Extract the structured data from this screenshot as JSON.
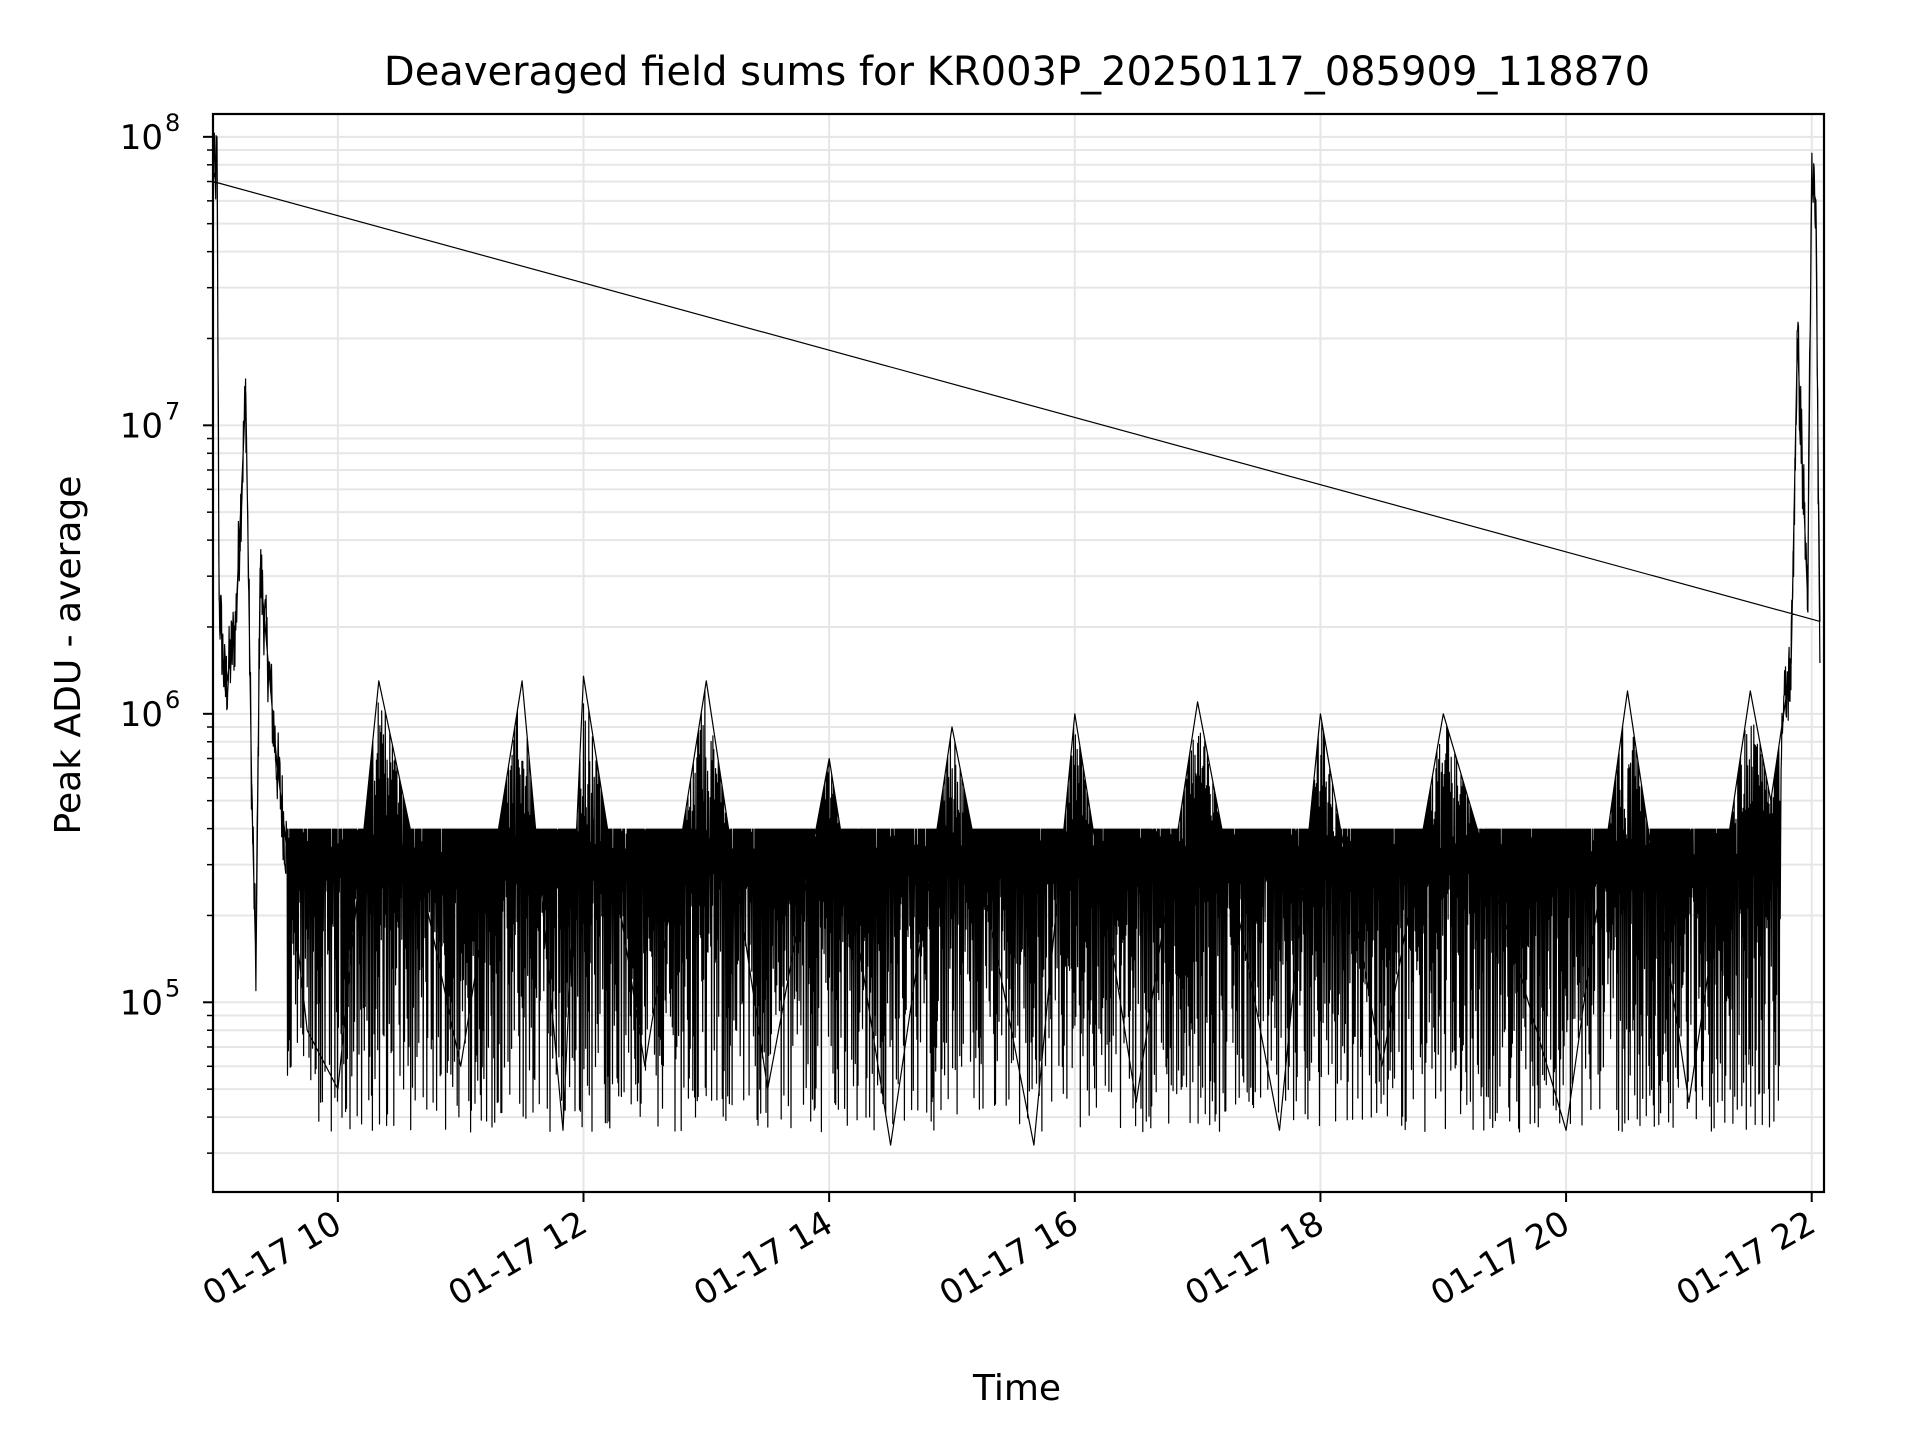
{
  "chart_data": {
    "type": "line",
    "title": "Deaveraged field sums for KR003P_20250117_085909_118870",
    "xlabel": "Time",
    "ylabel": "Peak ADU - average",
    "yscale": "log",
    "ylim": [
      22000,
      120000000
    ],
    "xlim": [
      "2025-01-17 08:59",
      "2025-01-17 22:06"
    ],
    "grid": true,
    "line_color": "#000000",
    "grid_color": "#e6e6e6",
    "x_ticks": [
      {
        "value": "2025-01-17 10:00",
        "label": "01-17 10"
      },
      {
        "value": "2025-01-17 12:00",
        "label": "01-17 12"
      },
      {
        "value": "2025-01-17 14:00",
        "label": "01-17 14"
      },
      {
        "value": "2025-01-17 16:00",
        "label": "01-17 16"
      },
      {
        "value": "2025-01-17 18:00",
        "label": "01-17 18"
      },
      {
        "value": "2025-01-17 20:00",
        "label": "01-17 20"
      },
      {
        "value": "2025-01-17 22:00",
        "label": "01-17 22"
      }
    ],
    "y_ticks": [
      {
        "value": 100000,
        "base": "10",
        "exp": "5"
      },
      {
        "value": 1000000,
        "base": "10",
        "exp": "6"
      },
      {
        "value": 10000000,
        "base": "10",
        "exp": "7"
      },
      {
        "value": 100000000,
        "base": "10",
        "exp": "8"
      }
    ],
    "series": [
      {
        "values": [
          [
            "2025-01-17 08:59",
            70000000
          ],
          [
            "2025-01-17 09:01",
            80000000
          ],
          [
            "2025-01-17 09:02",
            2500000
          ],
          [
            "2025-01-17 09:05",
            1200000
          ],
          [
            "2025-01-17 09:10",
            2000000
          ],
          [
            "2025-01-17 09:15",
            13000000
          ],
          [
            "2025-01-17 09:18",
            500000
          ],
          [
            "2025-01-17 09:20",
            130000
          ],
          [
            "2025-01-17 09:22",
            3200000
          ],
          [
            "2025-01-17 09:30",
            700000
          ],
          [
            "2025-01-17 09:45",
            80000
          ],
          [
            "2025-01-17 10:00",
            50000
          ],
          [
            "2025-01-17 10:20",
            1300000
          ],
          [
            "2025-01-17 11:00",
            60000
          ],
          [
            "2025-01-17 11:30",
            1300000
          ],
          [
            "2025-01-17 11:50",
            36000
          ],
          [
            "2025-01-17 12:00",
            1350000
          ],
          [
            "2025-01-17 12:30",
            60000
          ],
          [
            "2025-01-17 13:00",
            1300000
          ],
          [
            "2025-01-17 13:30",
            50000
          ],
          [
            "2025-01-17 14:00",
            700000
          ],
          [
            "2025-01-17 14:30",
            32000
          ],
          [
            "2025-01-17 15:00",
            900000
          ],
          [
            "2025-01-17 15:40",
            32000
          ],
          [
            "2025-01-17 16:00",
            1000000
          ],
          [
            "2025-01-17 16:30",
            45000
          ],
          [
            "2025-01-17 17:00",
            1100000
          ],
          [
            "2025-01-17 17:40",
            36000
          ],
          [
            "2025-01-17 18:00",
            1000000
          ],
          [
            "2025-01-17 18:30",
            60000
          ],
          [
            "2025-01-17 19:00",
            1000000
          ],
          [
            "2025-01-17 20:00",
            36000
          ],
          [
            "2025-01-17 20:30",
            1200000
          ],
          [
            "2025-01-17 21:00",
            45000
          ],
          [
            "2025-01-17 21:30",
            1200000
          ],
          [
            "2025-01-17 21:40",
            500000
          ],
          [
            "2025-01-17 21:50",
            1500000
          ],
          [
            "2025-01-17 21:53",
            20000000
          ],
          [
            "2025-01-17 21:58",
            2500000
          ],
          [
            "2025-01-17 22:00",
            70000000
          ],
          [
            "2025-01-17 22:02",
            60000000
          ],
          [
            "2025-01-17 22:04",
            1500000
          ]
        ]
      }
    ]
  }
}
